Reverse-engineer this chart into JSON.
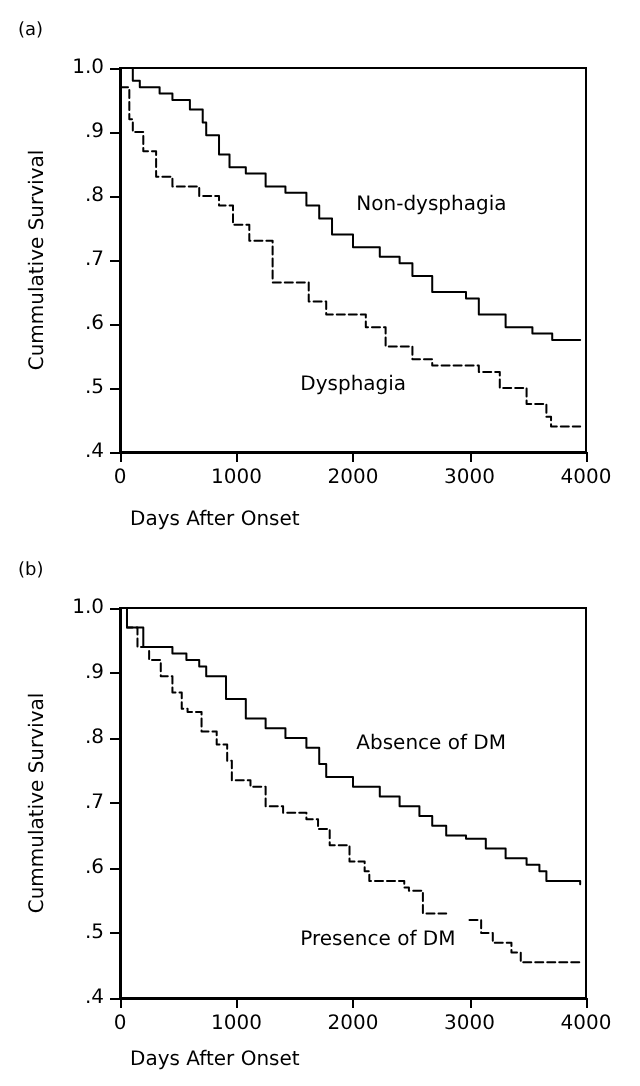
{
  "chart_data": [
    {
      "type": "step",
      "title": "(a)",
      "xlabel": "Days After Onset",
      "ylabel": "Cummulative Survival",
      "xlim": [
        0,
        4000
      ],
      "xticks": [
        0,
        1000,
        2000,
        3000,
        4000
      ],
      "ylim": [
        0.4,
        1.0
      ],
      "yticks": [
        {
          "value": 0.4,
          "label": ".4"
        },
        {
          "value": 0.5,
          "label": ".5"
        },
        {
          "value": 0.6,
          "label": ".6"
        },
        {
          "value": 0.7,
          "label": ".7"
        },
        {
          "value": 0.8,
          "label": ".8"
        },
        {
          "value": 0.9,
          "label": ".9"
        },
        {
          "value": 1.0,
          "label": "1.0"
        }
      ],
      "grid": false,
      "legend": false,
      "marker": "none",
      "series": [
        {
          "name": "Non-dysphagia",
          "color": "#000000",
          "line_style": "solid",
          "x": [
            0,
            110,
            170,
            340,
            450,
            600,
            710,
            740,
            850,
            940,
            1080,
            1250,
            1420,
            1600,
            1710,
            1820,
            2000,
            2230,
            2400,
            2510,
            2680,
            2970,
            3080,
            3310,
            3540,
            3710,
            3950
          ],
          "values": [
            1.0,
            0.98,
            0.97,
            0.96,
            0.95,
            0.935,
            0.915,
            0.895,
            0.865,
            0.845,
            0.835,
            0.815,
            0.805,
            0.785,
            0.765,
            0.74,
            0.72,
            0.705,
            0.695,
            0.675,
            0.65,
            0.64,
            0.615,
            0.595,
            0.585,
            0.575,
            0.575
          ]
        },
        {
          "name": "Dysphagia",
          "color": "#000000",
          "line_style": "dashed",
          "x": [
            0,
            80,
            110,
            200,
            310,
            450,
            680,
            850,
            970,
            1110,
            1310,
            1620,
            1770,
            2110,
            2280,
            2510,
            2680,
            3080,
            3260,
            3490,
            3660,
            3700,
            3950
          ],
          "values": [
            0.97,
            0.92,
            0.9,
            0.87,
            0.83,
            0.815,
            0.8,
            0.785,
            0.755,
            0.73,
            0.665,
            0.635,
            0.615,
            0.595,
            0.565,
            0.545,
            0.535,
            0.525,
            0.5,
            0.475,
            0.455,
            0.44,
            0.44
          ]
        }
      ]
    },
    {
      "type": "step",
      "title": "(b)",
      "xlabel": "Days After Onset",
      "ylabel": "Cummulative Survival",
      "xlim": [
        0,
        4000
      ],
      "xticks": [
        0,
        1000,
        2000,
        3000,
        4000
      ],
      "ylim": [
        0.4,
        1.0
      ],
      "yticks": [
        {
          "value": 0.4,
          "label": ".4"
        },
        {
          "value": 0.5,
          "label": ".5"
        },
        {
          "value": 0.6,
          "label": ".6"
        },
        {
          "value": 0.7,
          "label": ".7"
        },
        {
          "value": 0.8,
          "label": ".8"
        },
        {
          "value": 0.9,
          "label": ".9"
        },
        {
          "value": 1.0,
          "label": "1.0"
        }
      ],
      "grid": false,
      "legend": false,
      "marker": "none",
      "series": [
        {
          "name": "Absence of DM",
          "color": "#000000",
          "line_style": "solid",
          "x": [
            0,
            60,
            200,
            450,
            570,
            680,
            740,
            910,
            1080,
            1250,
            1420,
            1600,
            1710,
            1770,
            2000,
            2230,
            2400,
            2570,
            2680,
            2800,
            2970,
            3140,
            3310,
            3490,
            3600,
            3660,
            3950
          ],
          "values": [
            1.0,
            0.97,
            0.94,
            0.93,
            0.92,
            0.91,
            0.895,
            0.86,
            0.83,
            0.815,
            0.8,
            0.785,
            0.76,
            0.74,
            0.725,
            0.71,
            0.695,
            0.68,
            0.665,
            0.65,
            0.645,
            0.63,
            0.615,
            0.605,
            0.595,
            0.58,
            0.575
          ]
        },
        {
          "name": "Presence of DM",
          "color": "#000000",
          "line_style": "dashed",
          "x": [
            0,
            60,
            150,
            250,
            350,
            450,
            530,
            580,
            700,
            830,
            920,
            960,
            1120,
            1250,
            1400,
            1600,
            1700,
            1800,
            1970,
            2100,
            2140,
            2440,
            2480,
            2600,
            2800,
            3000,
            3100,
            3200,
            3360,
            3440,
            3950
          ],
          "values": [
            1.0,
            0.97,
            0.94,
            0.92,
            0.895,
            0.87,
            0.845,
            0.84,
            0.81,
            0.79,
            0.765,
            0.735,
            0.725,
            0.695,
            0.685,
            0.675,
            0.66,
            0.635,
            0.61,
            0.595,
            0.58,
            0.57,
            0.565,
            0.53,
            null,
            0.52,
            0.5,
            0.485,
            0.47,
            0.455,
            0.455
          ]
        }
      ]
    }
  ]
}
